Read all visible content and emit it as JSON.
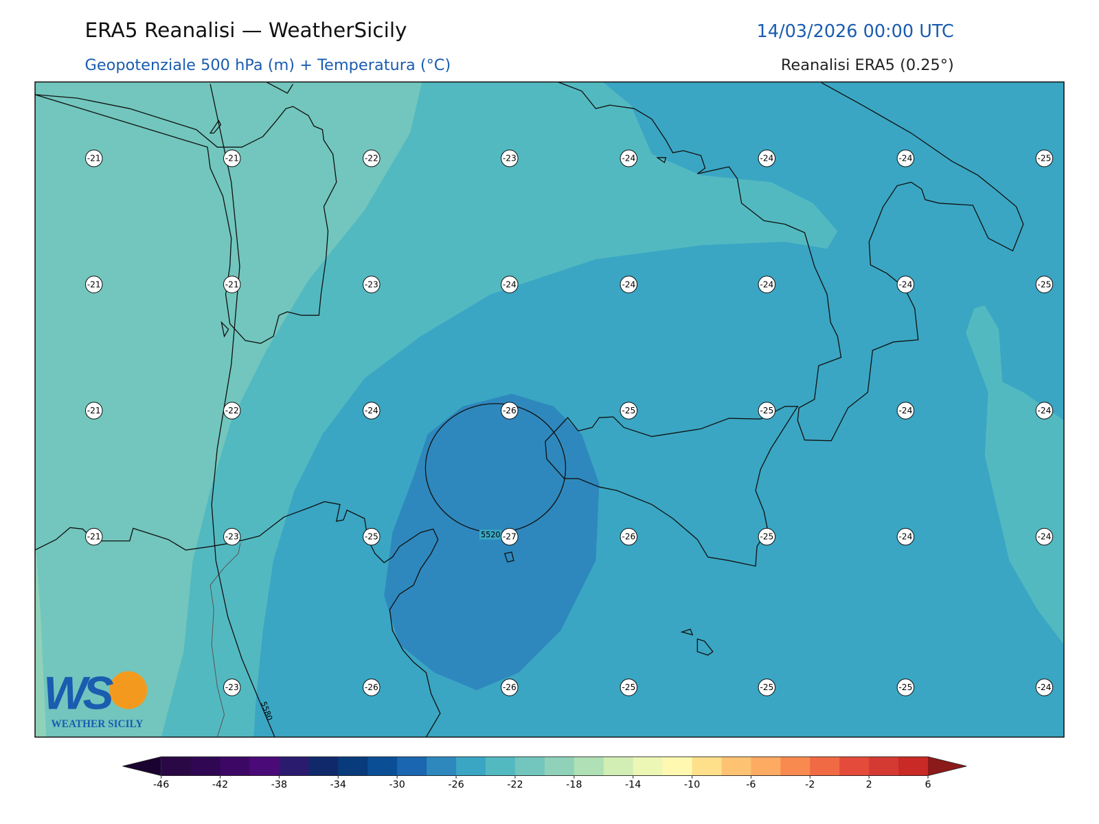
{
  "header": {
    "title": "ERA5 Reanalisi — WeatherSicily",
    "date": "14/03/2026 00:00 UTC",
    "subtitle": "Geopotenziale 500 hPa (m) + Temperatura (°C)",
    "source": "Reanalisi ERA5 (0.25°)"
  },
  "map": {
    "temperature_labels": [
      [
        -21,
        -21,
        -22,
        -23,
        -24,
        -24,
        -24,
        -25
      ],
      [
        -21,
        -21,
        -23,
        -24,
        -24,
        -24,
        -24,
        -25
      ],
      [
        -21,
        -22,
        -24,
        -26,
        -25,
        -25,
        -24,
        -24
      ],
      [
        -21,
        -23,
        -25,
        -27,
        -26,
        -25,
        -24,
        -24
      ],
      [
        null,
        -23,
        -26,
        -26,
        -25,
        -25,
        -25,
        -24
      ]
    ],
    "contour_labels": [
      "5520",
      "5580"
    ]
  },
  "colorbar": {
    "ticks": [
      -46,
      -42,
      -38,
      -34,
      -30,
      -26,
      -22,
      -18,
      -14,
      -10,
      -6,
      -2,
      2,
      6
    ],
    "colors": [
      "#2a0845",
      "#2f0752",
      "#3d0765",
      "#4a0a78",
      "#2b1b6e",
      "#10296a",
      "#083b7c",
      "#0a4e96",
      "#1b66b0",
      "#2e88bd",
      "#3aa6c3",
      "#53b9c1",
      "#72c6bd",
      "#90d2b9",
      "#b0e0b5",
      "#d2eeb5",
      "#ecf7b6",
      "#fff8b0",
      "#fee08b",
      "#fdc373",
      "#fdab62",
      "#f8894f",
      "#f06a44",
      "#e44b3a",
      "#d53a32",
      "#c92a26"
    ],
    "extend_colors": [
      "#1a0330",
      "#8b1a1a"
    ]
  },
  "logo": {
    "mark": "WS",
    "name": "WEATHER SICILY"
  }
}
